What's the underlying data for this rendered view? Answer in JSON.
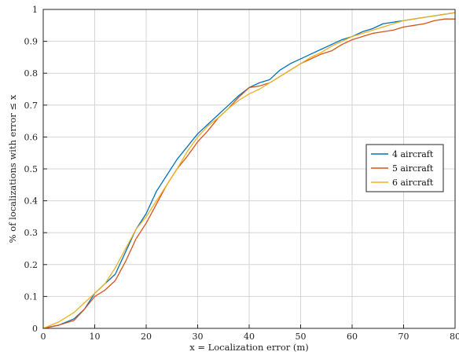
{
  "chart_data": {
    "type": "line",
    "title": "",
    "xlabel": "x = Localization error (m)",
    "ylabel": "% of localizations with error ≤ x",
    "xlim": [
      0,
      80
    ],
    "ylim": [
      0,
      1
    ],
    "x_ticks": [
      0,
      10,
      20,
      30,
      40,
      50,
      60,
      70,
      80
    ],
    "y_ticks": [
      0,
      0.1,
      0.2,
      0.3,
      0.4,
      0.5,
      0.6,
      0.7,
      0.8,
      0.9,
      1
    ],
    "x_tick_labels": [
      "0",
      "10",
      "20",
      "30",
      "40",
      "50",
      "60",
      "70",
      "80"
    ],
    "y_tick_labels": [
      "0",
      "0.1",
      "0.2",
      "0.3",
      "0.4",
      "0.5",
      "0.6",
      "0.7",
      "0.8",
      "0.9",
      "1"
    ],
    "grid": true,
    "legend_position": "right-center",
    "series": [
      {
        "name": "4 aircraft",
        "color": "#0072BD",
        "points": [
          [
            0,
            0
          ],
          [
            3,
            0.01
          ],
          [
            6,
            0.03
          ],
          [
            8,
            0.06
          ],
          [
            10,
            0.11
          ],
          [
            12,
            0.14
          ],
          [
            14,
            0.17
          ],
          [
            16,
            0.24
          ],
          [
            18,
            0.31
          ],
          [
            20,
            0.36
          ],
          [
            22,
            0.43
          ],
          [
            24,
            0.48
          ],
          [
            26,
            0.53
          ],
          [
            28,
            0.57
          ],
          [
            30,
            0.61
          ],
          [
            32,
            0.64
          ],
          [
            34,
            0.67
          ],
          [
            36,
            0.7
          ],
          [
            38,
            0.73
          ],
          [
            40,
            0.755
          ],
          [
            42,
            0.77
          ],
          [
            44,
            0.78
          ],
          [
            46,
            0.81
          ],
          [
            48,
            0.83
          ],
          [
            50,
            0.845
          ],
          [
            52,
            0.86
          ],
          [
            54,
            0.875
          ],
          [
            56,
            0.89
          ],
          [
            58,
            0.905
          ],
          [
            60,
            0.915
          ],
          [
            62,
            0.93
          ],
          [
            64,
            0.94
          ],
          [
            66,
            0.955
          ],
          [
            68,
            0.96
          ],
          [
            70,
            0.965
          ],
          [
            72,
            0.97
          ],
          [
            74,
            0.975
          ],
          [
            76,
            0.98
          ],
          [
            78,
            0.985
          ],
          [
            80,
            0.99
          ]
        ]
      },
      {
        "name": "5 aircraft",
        "color": "#D95319",
        "points": [
          [
            0,
            0
          ],
          [
            3,
            0.01
          ],
          [
            6,
            0.025
          ],
          [
            8,
            0.06
          ],
          [
            10,
            0.1
          ],
          [
            12,
            0.12
          ],
          [
            14,
            0.15
          ],
          [
            16,
            0.21
          ],
          [
            18,
            0.28
          ],
          [
            20,
            0.33
          ],
          [
            22,
            0.39
          ],
          [
            24,
            0.45
          ],
          [
            26,
            0.5
          ],
          [
            28,
            0.54
          ],
          [
            30,
            0.585
          ],
          [
            32,
            0.62
          ],
          [
            34,
            0.66
          ],
          [
            36,
            0.69
          ],
          [
            38,
            0.725
          ],
          [
            40,
            0.755
          ],
          [
            42,
            0.76
          ],
          [
            44,
            0.77
          ],
          [
            46,
            0.79
          ],
          [
            48,
            0.81
          ],
          [
            50,
            0.83
          ],
          [
            52,
            0.845
          ],
          [
            54,
            0.86
          ],
          [
            56,
            0.87
          ],
          [
            58,
            0.89
          ],
          [
            60,
            0.905
          ],
          [
            62,
            0.915
          ],
          [
            64,
            0.925
          ],
          [
            66,
            0.93
          ],
          [
            68,
            0.935
          ],
          [
            70,
            0.945
          ],
          [
            72,
            0.95
          ],
          [
            74,
            0.955
          ],
          [
            76,
            0.965
          ],
          [
            78,
            0.97
          ],
          [
            80,
            0.97
          ]
        ]
      },
      {
        "name": "6 aircraft",
        "color": "#EDB120",
        "points": [
          [
            0,
            0
          ],
          [
            3,
            0.02
          ],
          [
            6,
            0.05
          ],
          [
            8,
            0.08
          ],
          [
            10,
            0.11
          ],
          [
            12,
            0.14
          ],
          [
            14,
            0.19
          ],
          [
            16,
            0.25
          ],
          [
            18,
            0.31
          ],
          [
            20,
            0.35
          ],
          [
            22,
            0.4
          ],
          [
            24,
            0.45
          ],
          [
            26,
            0.5
          ],
          [
            28,
            0.555
          ],
          [
            30,
            0.6
          ],
          [
            32,
            0.635
          ],
          [
            34,
            0.66
          ],
          [
            36,
            0.69
          ],
          [
            38,
            0.715
          ],
          [
            40,
            0.735
          ],
          [
            42,
            0.75
          ],
          [
            44,
            0.77
          ],
          [
            46,
            0.79
          ],
          [
            48,
            0.81
          ],
          [
            50,
            0.83
          ],
          [
            52,
            0.85
          ],
          [
            54,
            0.865
          ],
          [
            56,
            0.885
          ],
          [
            58,
            0.9
          ],
          [
            60,
            0.915
          ],
          [
            62,
            0.925
          ],
          [
            64,
            0.935
          ],
          [
            66,
            0.945
          ],
          [
            68,
            0.955
          ],
          [
            70,
            0.965
          ],
          [
            72,
            0.97
          ],
          [
            74,
            0.975
          ],
          [
            76,
            0.98
          ],
          [
            78,
            0.985
          ],
          [
            80,
            0.99
          ]
        ]
      }
    ]
  }
}
